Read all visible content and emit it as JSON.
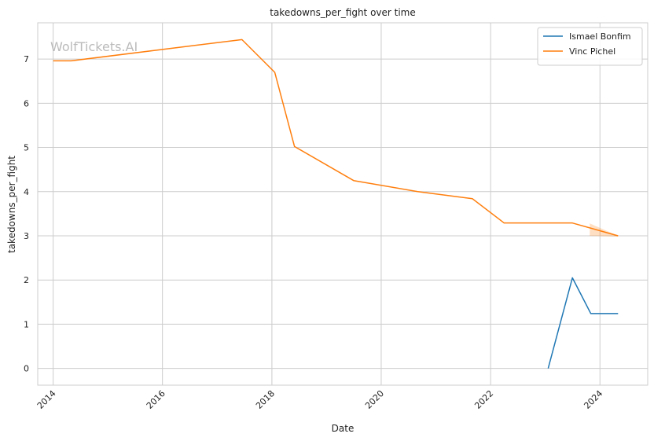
{
  "watermark": "WolfTickets.AI",
  "chart_data": {
    "type": "line",
    "title": "takedowns_per_fight over time",
    "xlabel": "Date",
    "ylabel": "takedowns_per_fight",
    "x_type": "date",
    "xlim": [
      "2013-09-20",
      "2024-11-15"
    ],
    "ylim": [
      -0.38,
      7.82
    ],
    "x_ticks": [
      "2014",
      "2016",
      "2018",
      "2020",
      "2022",
      "2024"
    ],
    "y_ticks": [
      0,
      1,
      2,
      3,
      4,
      5,
      6,
      7
    ],
    "grid": true,
    "legend_position": "top-right",
    "series": [
      {
        "name": "Ismael Bonfim",
        "color": "#1f77b4",
        "points": [
          {
            "x": "2023-01-20",
            "y": 0
          },
          {
            "x": "2023-07-01",
            "y": 2.05
          },
          {
            "x": "2023-11-01",
            "y": 1.24
          },
          {
            "x": "2024-05-01",
            "y": 1.24
          }
        ]
      },
      {
        "name": "Vinc Pichel",
        "color": "#ff7f0e",
        "points": [
          {
            "x": "2014-01-01",
            "y": 6.96
          },
          {
            "x": "2014-05-01",
            "y": 6.96
          },
          {
            "x": "2017-06-15",
            "y": 7.44
          },
          {
            "x": "2018-01-20",
            "y": 6.7
          },
          {
            "x": "2018-06-01",
            "y": 5.02
          },
          {
            "x": "2019-07-01",
            "y": 4.25
          },
          {
            "x": "2020-09-01",
            "y": 4.0
          },
          {
            "x": "2021-09-01",
            "y": 3.84
          },
          {
            "x": "2022-04-01",
            "y": 3.29
          },
          {
            "x": "2023-07-01",
            "y": 3.29
          },
          {
            "x": "2024-05-01",
            "y": 3.0
          }
        ],
        "band": {
          "upper": [
            {
              "x": "2023-10-25",
              "y": 3.28
            },
            {
              "x": "2024-05-01",
              "y": 3.0
            }
          ],
          "lower": [
            {
              "x": "2023-10-25",
              "y": 3.0
            },
            {
              "x": "2024-05-01",
              "y": 2.98
            }
          ]
        }
      }
    ]
  }
}
